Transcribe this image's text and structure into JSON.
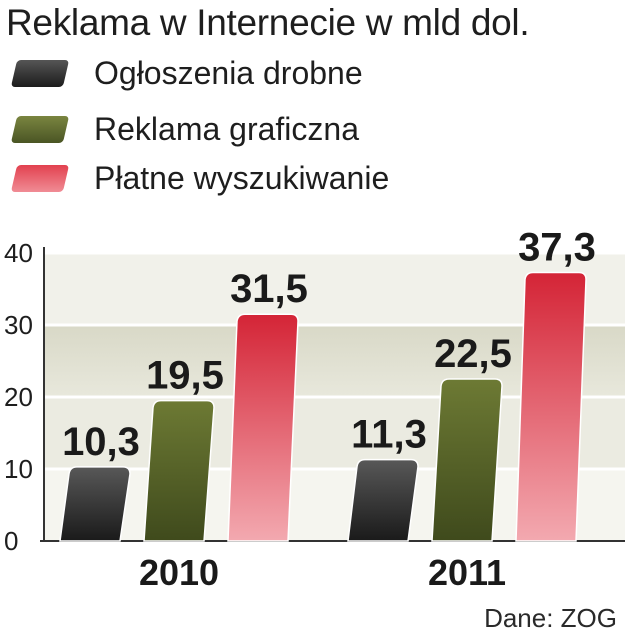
{
  "chart_data": {
    "type": "bar",
    "title": "Reklama w Internecie w mld dol.",
    "categories": [
      "2010",
      "2011"
    ],
    "series": [
      {
        "name": "Ogłoszenia drobne",
        "values": [
          10.3,
          11.3
        ],
        "labels": [
          "10,3",
          "11,3"
        ]
      },
      {
        "name": "Reklama graficzna",
        "values": [
          19.5,
          22.5
        ],
        "labels": [
          "19,5",
          "22,5"
        ]
      },
      {
        "name": "Płatne wyszukiwanie",
        "values": [
          31.5,
          37.3
        ],
        "labels": [
          "31,5",
          "37,3"
        ]
      }
    ],
    "ylim": [
      0,
      40
    ],
    "yticks": [
      "0",
      "10",
      "20",
      "30",
      "40"
    ],
    "grid": true,
    "legend_position": "top-left",
    "colors": {
      "series": [
        "#2b2b2b",
        "#55612b",
        "#d9283b"
      ],
      "series_light": [
        "#8a8a8a",
        "#a4ad7a",
        "#f3a3aa"
      ],
      "band_light": "#f0f0e6",
      "band_dark": "#d3d3c1"
    },
    "source": "Dane: ZOG"
  }
}
